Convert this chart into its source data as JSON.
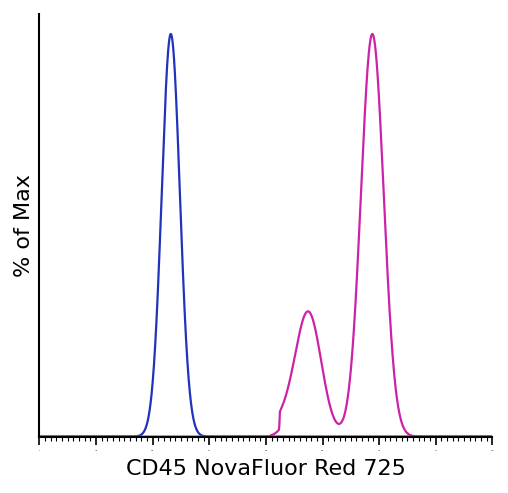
{
  "title": "",
  "xlabel": "CD45 NovaFluor Red 725",
  "ylabel": "% of Max",
  "xlabel_fontsize": 16,
  "ylabel_fontsize": 16,
  "blue_color": "#2233BB",
  "pink_color": "#CC22AA",
  "line_width": 1.6,
  "xlim": [
    0,
    1000
  ],
  "ylim": [
    0,
    1.05
  ],
  "background_color": "#ffffff"
}
